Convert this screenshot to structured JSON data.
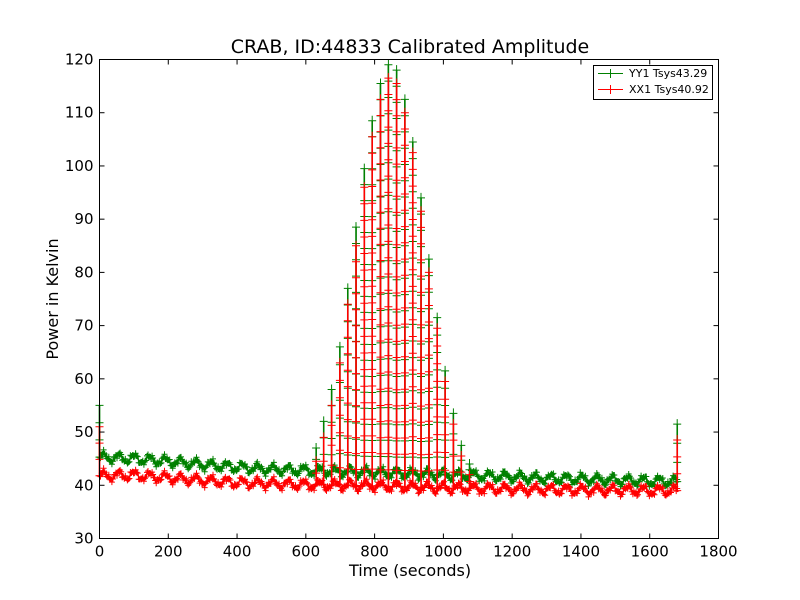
{
  "chart_data": {
    "type": "line",
    "title": "CRAB, ID:44833 Calibrated Amplitude",
    "xlabel": "Time (seconds)",
    "ylabel": "Power in Kelvin",
    "xlim": [
      0,
      1800
    ],
    "ylim": [
      30,
      120
    ],
    "xticks": [
      "0",
      "200",
      "400",
      "600",
      "800",
      "1000",
      "1200",
      "1400",
      "1600",
      "1800"
    ],
    "yticks": [
      "30",
      "40",
      "50",
      "60",
      "70",
      "80",
      "90",
      "100",
      "110",
      "120"
    ],
    "grid": false,
    "legend_position": "top-right",
    "series": [
      {
        "name": "YY1 Tsys43.29",
        "color": "#008000",
        "marker": "+",
        "baseline": [
          [
            0,
            45.3
          ],
          [
            100,
            45.0
          ],
          [
            200,
            44.5
          ],
          [
            300,
            43.9
          ],
          [
            400,
            43.4
          ],
          [
            500,
            43.0
          ],
          [
            600,
            42.8
          ],
          [
            700,
            42.6
          ],
          [
            800,
            42.4
          ],
          [
            900,
            42.2
          ],
          [
            1000,
            42.0
          ],
          [
            1100,
            41.8
          ],
          [
            1200,
            41.6
          ],
          [
            1300,
            41.3
          ],
          [
            1400,
            41.2
          ],
          [
            1500,
            41.0
          ],
          [
            1600,
            40.8
          ],
          [
            1680,
            40.7
          ]
        ],
        "scan_peaks": [
          [
            0,
            55
          ],
          [
            630,
            47
          ],
          [
            652,
            52
          ],
          [
            675,
            58
          ],
          [
            699,
            66
          ],
          [
            722,
            77
          ],
          [
            746,
            88.5
          ],
          [
            770,
            99.5
          ],
          [
            793,
            108.5
          ],
          [
            817,
            115.5
          ],
          [
            840,
            119
          ],
          [
            864,
            118
          ],
          [
            888,
            112.5
          ],
          [
            911,
            104.5
          ],
          [
            935,
            94
          ],
          [
            958,
            82.5
          ],
          [
            982,
            71.5
          ],
          [
            1005,
            61.5
          ],
          [
            1029,
            53.5
          ],
          [
            1052,
            47.5
          ],
          [
            1076,
            44
          ],
          [
            1680,
            51.5
          ]
        ]
      },
      {
        "name": "XX1 Tsys40.92",
        "color": "#ff0000",
        "marker": "+",
        "baseline": [
          [
            0,
            41.8
          ],
          [
            100,
            41.9
          ],
          [
            200,
            41.4
          ],
          [
            300,
            40.9
          ],
          [
            400,
            40.5
          ],
          [
            500,
            40.3
          ],
          [
            600,
            40.1
          ],
          [
            700,
            40.0
          ],
          [
            800,
            39.9
          ],
          [
            900,
            39.7
          ],
          [
            1000,
            39.5
          ],
          [
            1100,
            39.4
          ],
          [
            1200,
            39.3
          ],
          [
            1300,
            39.2
          ],
          [
            1400,
            39.1
          ],
          [
            1500,
            39.1
          ],
          [
            1600,
            39.0
          ],
          [
            1680,
            39.0
          ]
        ],
        "scan_peaks": [
          [
            0,
            51
          ],
          [
            630,
            44.5
          ],
          [
            652,
            49
          ],
          [
            675,
            55
          ],
          [
            699,
            63
          ],
          [
            722,
            74
          ],
          [
            746,
            85
          ],
          [
            770,
            96
          ],
          [
            793,
            105.5
          ],
          [
            817,
            112.5
          ],
          [
            840,
            116.5
          ],
          [
            864,
            115.5
          ],
          [
            888,
            110
          ],
          [
            911,
            102.5
          ],
          [
            935,
            91.5
          ],
          [
            958,
            80
          ],
          [
            982,
            69.5
          ],
          [
            1005,
            59.5
          ],
          [
            1029,
            51.5
          ],
          [
            1052,
            45.5
          ],
          [
            1076,
            42
          ],
          [
            1680,
            48.5
          ]
        ]
      }
    ]
  }
}
